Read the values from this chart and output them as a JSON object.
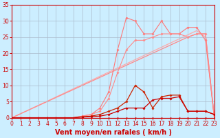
{
  "title": "",
  "xlabel": "Vent moyen/en rafales ( km/h )",
  "ylabel": "",
  "bg_color": "#cceeff",
  "grid_color": "#aabbcc",
  "xlim": [
    0,
    23
  ],
  "ylim": [
    0,
    35
  ],
  "xticks": [
    0,
    1,
    2,
    3,
    4,
    5,
    6,
    7,
    8,
    9,
    10,
    11,
    12,
    13,
    14,
    15,
    16,
    17,
    18,
    19,
    20,
    21,
    22,
    23
  ],
  "yticks": [
    0,
    5,
    10,
    15,
    20,
    25,
    30,
    35
  ],
  "lines": [
    {
      "x": [
        0,
        21,
        22,
        23
      ],
      "y": [
        0,
        27,
        25,
        0
      ],
      "color": "#ffaaaa",
      "lw": 0.9,
      "marker": null,
      "ms": 0,
      "linestyle": "-"
    },
    {
      "x": [
        0,
        20,
        21,
        22,
        23
      ],
      "y": [
        0,
        25,
        26,
        26,
        0
      ],
      "color": "#ff8888",
      "lw": 0.9,
      "marker": null,
      "ms": 0,
      "linestyle": "-"
    },
    {
      "x": [
        0,
        1,
        2,
        3,
        4,
        5,
        6,
        7,
        8,
        9,
        10,
        11,
        12,
        13,
        14,
        15,
        16,
        17,
        18,
        19,
        20,
        21,
        22,
        23
      ],
      "y": [
        0,
        0,
        0,
        0,
        0,
        0,
        0,
        0,
        0.5,
        1,
        3,
        8,
        21,
        31,
        30,
        26,
        26,
        30,
        26,
        26,
        28,
        28,
        24,
        0
      ],
      "color": "#ff7777",
      "lw": 0.8,
      "marker": "D",
      "ms": 1.8,
      "linestyle": "-"
    },
    {
      "x": [
        0,
        1,
        2,
        3,
        4,
        5,
        6,
        7,
        8,
        9,
        10,
        11,
        12,
        13,
        14,
        15,
        16,
        17,
        18,
        19,
        20,
        21,
        22,
        23
      ],
      "y": [
        0,
        0,
        0,
        0,
        0,
        0,
        0,
        0,
        0.5,
        1,
        2,
        6,
        14,
        21,
        24,
        24,
        25,
        26,
        26,
        26,
        25,
        26,
        26,
        0
      ],
      "color": "#ff8888",
      "lw": 0.8,
      "marker": "D",
      "ms": 1.8,
      "linestyle": "-"
    },
    {
      "x": [
        0,
        1,
        2,
        3,
        4,
        5,
        6,
        7,
        8,
        9,
        10,
        11,
        12,
        13,
        14,
        15,
        16,
        17,
        18,
        19,
        20,
        21,
        22,
        23
      ],
      "y": [
        0,
        0,
        0,
        0,
        0,
        0,
        0,
        0,
        0.3,
        0.5,
        1,
        2,
        3,
        5,
        10,
        8,
        3,
        6.5,
        7,
        7,
        2,
        2,
        2,
        1
      ],
      "color": "#cc2200",
      "lw": 0.9,
      "marker": "D",
      "ms": 1.8,
      "linestyle": "-"
    },
    {
      "x": [
        0,
        1,
        2,
        3,
        4,
        5,
        6,
        7,
        8,
        9,
        10,
        11,
        12,
        13,
        14,
        15,
        16,
        17,
        18,
        19,
        20,
        21,
        22,
        23
      ],
      "y": [
        0,
        0,
        0,
        0,
        0,
        0,
        0,
        0,
        0.2,
        0.3,
        0.5,
        1,
        2,
        3,
        3,
        3,
        5.5,
        6,
        6,
        6.5,
        2,
        2,
        2,
        1
      ],
      "color": "#cc0000",
      "lw": 0.9,
      "marker": "D",
      "ms": 1.8,
      "linestyle": "-"
    },
    {
      "x": [
        0,
        1,
        2,
        3,
        4,
        5,
        6,
        7,
        8,
        9,
        10,
        11,
        12,
        13,
        14,
        15,
        16,
        17,
        18,
        19,
        20,
        21,
        22,
        23
      ],
      "y": [
        0,
        0,
        0,
        0,
        0,
        0,
        0,
        0,
        0,
        0,
        0,
        0,
        0,
        0,
        0,
        0,
        0,
        0,
        0,
        0,
        0,
        0,
        0,
        0
      ],
      "color": "#cc0000",
      "lw": 0.8,
      "marker": "D",
      "ms": 1.5,
      "linestyle": "-"
    }
  ],
  "axis_color": "#cc0000",
  "tick_color": "#cc0000",
  "label_color": "#cc0000",
  "label_fontsize": 7.0,
  "tick_fontsize": 5.5
}
